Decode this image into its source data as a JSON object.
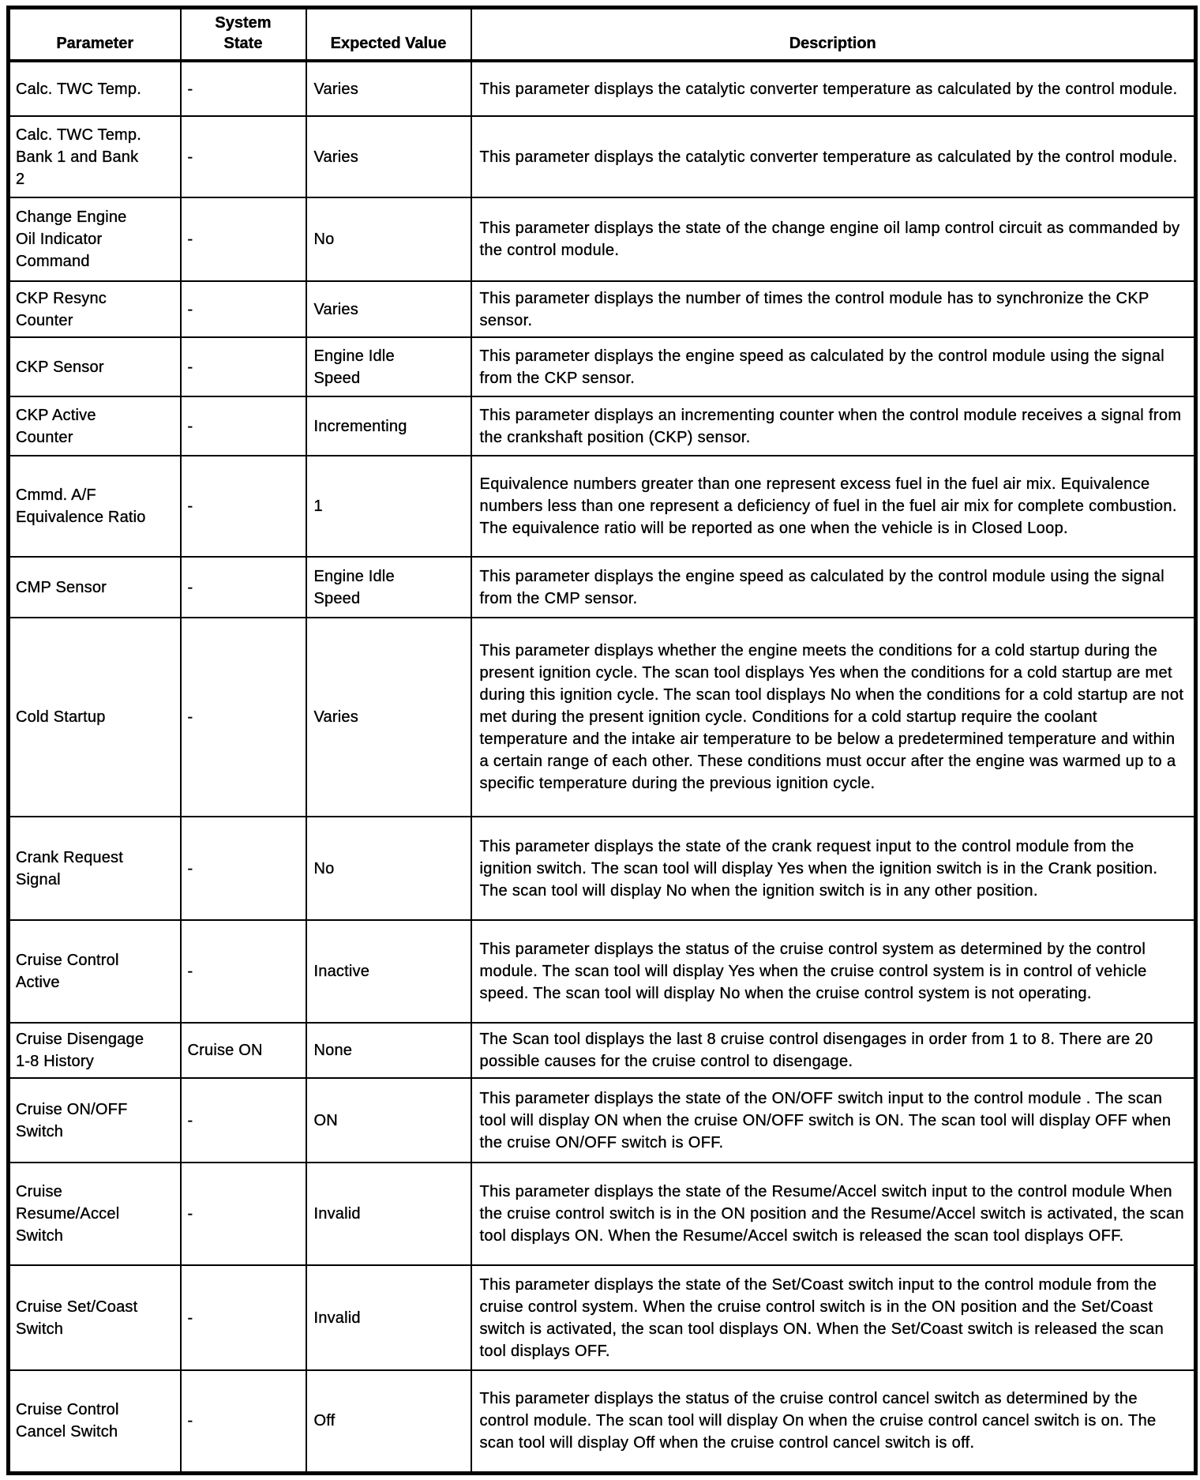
{
  "table": {
    "headers": [
      "Parameter",
      "System\nState",
      "Expected Value",
      "Description"
    ],
    "rows": [
      {
        "parameter": "Calc. TWC Temp.",
        "system_state": "-",
        "expected_value": "Varies",
        "description": "This parameter displays the catalytic converter temperature as calculated by the control module."
      },
      {
        "parameter": "Calc. TWC Temp.\nBank 1 and Bank\n2",
        "system_state": "-",
        "expected_value": "Varies",
        "description": "This parameter displays the catalytic converter temperature as calculated by the control module."
      },
      {
        "parameter": "Change Engine\nOil Indicator\nCommand",
        "system_state": "-",
        "expected_value": "No",
        "description": "This parameter displays the state of the change engine oil lamp control circuit as commanded by the control module."
      },
      {
        "parameter": "CKP Resync\nCounter",
        "system_state": "-",
        "expected_value": "Varies",
        "description": "This parameter displays the number of times the control module has to synchronize the CKP sensor."
      },
      {
        "parameter": "CKP Sensor",
        "system_state": "-",
        "expected_value": "Engine Idle\nSpeed",
        "description": "This parameter displays the engine speed as calculated by the control module using the signal from the CKP sensor."
      },
      {
        "parameter": "CKP Active\nCounter",
        "system_state": "-",
        "expected_value": "Incrementing",
        "description": "This parameter displays an incrementing counter when the control module receives a signal from the crankshaft position (CKP) sensor."
      },
      {
        "parameter": "Cmmd. A/F\nEquivalence Ratio",
        "system_state": "-",
        "expected_value": "1",
        "description": "Equivalence numbers greater than one represent excess fuel in the fuel air mix. Equivalence numbers less than one represent a deficiency of fuel in the fuel air mix for complete combustion. The equivalence ratio will be reported as one when the vehicle is in Closed Loop."
      },
      {
        "parameter": "CMP Sensor",
        "system_state": "-",
        "expected_value": "Engine Idle\nSpeed",
        "description": "This parameter displays the engine speed as calculated by the control module using the signal from the CMP sensor."
      },
      {
        "parameter": "Cold Startup",
        "system_state": "-",
        "expected_value": "Varies",
        "description": "This parameter displays whether the engine meets the conditions for a cold startup during the present ignition cycle. The scan tool displays Yes when the conditions for a cold startup are met during this ignition cycle. The scan tool displays No when the conditions for a cold startup are not met during the present ignition cycle. Conditions for a cold startup require the coolant temperature and the intake air temperature to be below a predetermined temperature and within a certain range of each other. These conditions must occur after the engine was warmed up to a specific temperature during the previous ignition cycle."
      },
      {
        "parameter": "Crank Request\nSignal",
        "system_state": "-",
        "expected_value": "No",
        "description": "This parameter displays the state of the crank request input to the control module from the ignition switch. The scan tool will display Yes when the ignition switch is in the Crank position. The scan tool will display No when the ignition switch is in any other position."
      },
      {
        "parameter": "Cruise Control\nActive",
        "system_state": "-",
        "expected_value": "Inactive",
        "description": "This parameter displays the status of the cruise control system as determined by the control module. The scan tool will display Yes when the cruise control system is in control of vehicle speed. The scan tool will display No when the cruise control system is not operating."
      },
      {
        "parameter": "Cruise Disengage\n1-8 History",
        "system_state": "Cruise ON",
        "expected_value": "None",
        "description": "The Scan tool displays the last 8 cruise control disengages in order from 1 to 8. There are 20 possible causes for the cruise control to disengage."
      },
      {
        "parameter": "Cruise ON/OFF\nSwitch",
        "system_state": "-",
        "expected_value": "ON",
        "description": "This parameter displays the state of the ON/OFF switch input to the control module . The scan tool will display ON when the cruise ON/OFF switch is ON. The scan tool will display OFF when the cruise ON/OFF switch is OFF."
      },
      {
        "parameter": "Cruise\nResume/Accel\nSwitch",
        "system_state": "-",
        "expected_value": "Invalid",
        "description": "This parameter displays the state of the Resume/Accel switch input to the control module When the cruise control switch is in the ON position and the Resume/Accel switch is activated, the scan tool displays ON. When the Resume/Accel switch is released the scan tool displays OFF."
      },
      {
        "parameter": "Cruise Set/Coast\nSwitch",
        "system_state": "-",
        "expected_value": "Invalid",
        "description": "This parameter displays the state of the Set/Coast switch input to the control module from the cruise control system. When the cruise control switch is in the ON position and the Set/Coast switch is activated, the scan tool displays ON. When the Set/Coast switch is released the scan tool displays OFF."
      },
      {
        "parameter": "Cruise Control\nCancel Switch",
        "system_state": "-",
        "expected_value": "Off",
        "description": "This parameter displays the status of the cruise control cancel switch as determined by the control module. The scan tool will display On when the cruise control cancel switch is on. The scan tool will display Off when the cruise control cancel switch is off."
      }
    ]
  }
}
